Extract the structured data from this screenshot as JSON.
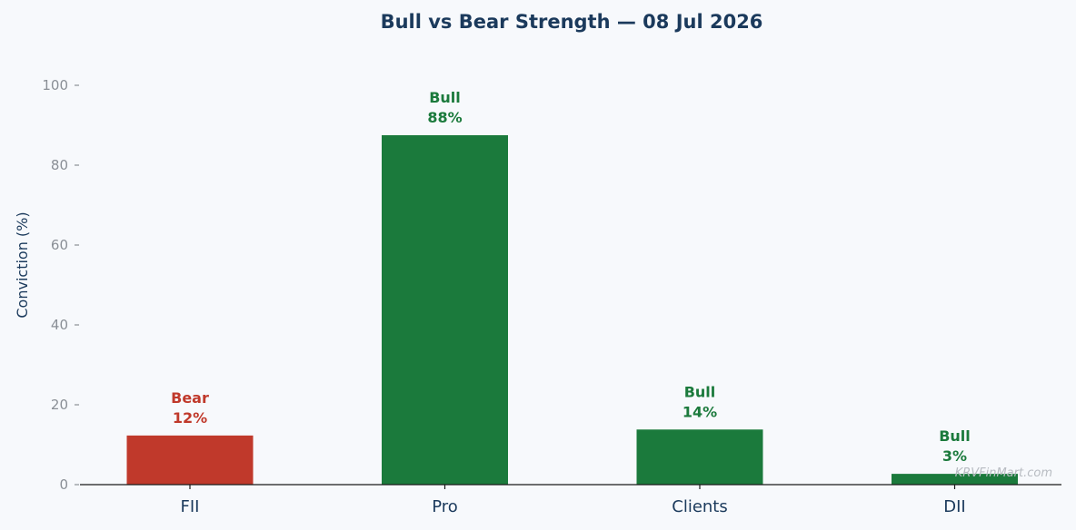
{
  "chart_data": {
    "type": "bar",
    "title": "Bull vs Bear Strength — 08 Jul 2026",
    "xlabel": "",
    "ylabel": "Conviction (%)",
    "ylim": [
      0,
      105
    ],
    "yticks": [
      0,
      20,
      40,
      60,
      80,
      100
    ],
    "categories": [
      "FII",
      "Pro",
      "Clients",
      "DII"
    ],
    "values": [
      12.3,
      87.5,
      13.8,
      2.7
    ],
    "stances": [
      "Bear",
      "Bull",
      "Bull",
      "Bull"
    ],
    "value_labels": [
      "12%",
      "88%",
      "14%",
      "3%"
    ],
    "grid": false,
    "legend": "none",
    "colors": {
      "Bull": "#1b7a3c",
      "Bear": "#c0392b"
    }
  },
  "watermark": "KRVFinMart.com"
}
